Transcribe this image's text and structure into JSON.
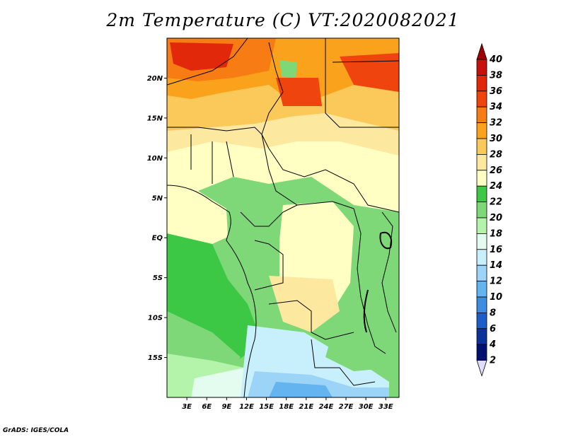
{
  "title": "2m Temperature (C) VT:2020082021",
  "credit": "GrADS: IGES/COLA",
  "map": {
    "lon_range": [
      0,
      35
    ],
    "lat_range": [
      -20,
      25
    ],
    "lat_ticks": [
      {
        "value": 20,
        "label": "20N"
      },
      {
        "value": 15,
        "label": "15N"
      },
      {
        "value": 10,
        "label": "10N"
      },
      {
        "value": 5,
        "label": "5N"
      },
      {
        "value": 0,
        "label": "EQ"
      },
      {
        "value": -5,
        "label": "5S"
      },
      {
        "value": -10,
        "label": "10S"
      },
      {
        "value": -15,
        "label": "15S"
      }
    ],
    "lon_ticks": [
      {
        "value": 3,
        "label": "3E"
      },
      {
        "value": 6,
        "label": "6E"
      },
      {
        "value": 9,
        "label": "9E"
      },
      {
        "value": 12,
        "label": "12E"
      },
      {
        "value": 15,
        "label": "15E"
      },
      {
        "value": 18,
        "label": "18E"
      },
      {
        "value": 21,
        "label": "21E"
      },
      {
        "value": 24,
        "label": "24E"
      },
      {
        "value": 27,
        "label": "27E"
      },
      {
        "value": 30,
        "label": "30E"
      },
      {
        "value": 33,
        "label": "33E"
      }
    ]
  },
  "colorbar": {
    "labels": [
      "40",
      "38",
      "36",
      "34",
      "32",
      "30",
      "28",
      "26",
      "24",
      "22",
      "20",
      "18",
      "16",
      "14",
      "12",
      "10",
      "8",
      "6",
      "4",
      "2"
    ],
    "colors": [
      "#a00000",
      "#c8100c",
      "#e2280a",
      "#f0440e",
      "#f87c14",
      "#fba21c",
      "#fbc95a",
      "#fde8a0",
      "#ffffc4",
      "#3cc844",
      "#7ed877",
      "#b4f4aa",
      "#e4fcf0",
      "#c8f0fc",
      "#9cd4f8",
      "#64b4f0",
      "#3c8ce0",
      "#1e5ec8",
      "#0a3298",
      "#001070",
      "#e0dcfc"
    ]
  }
}
